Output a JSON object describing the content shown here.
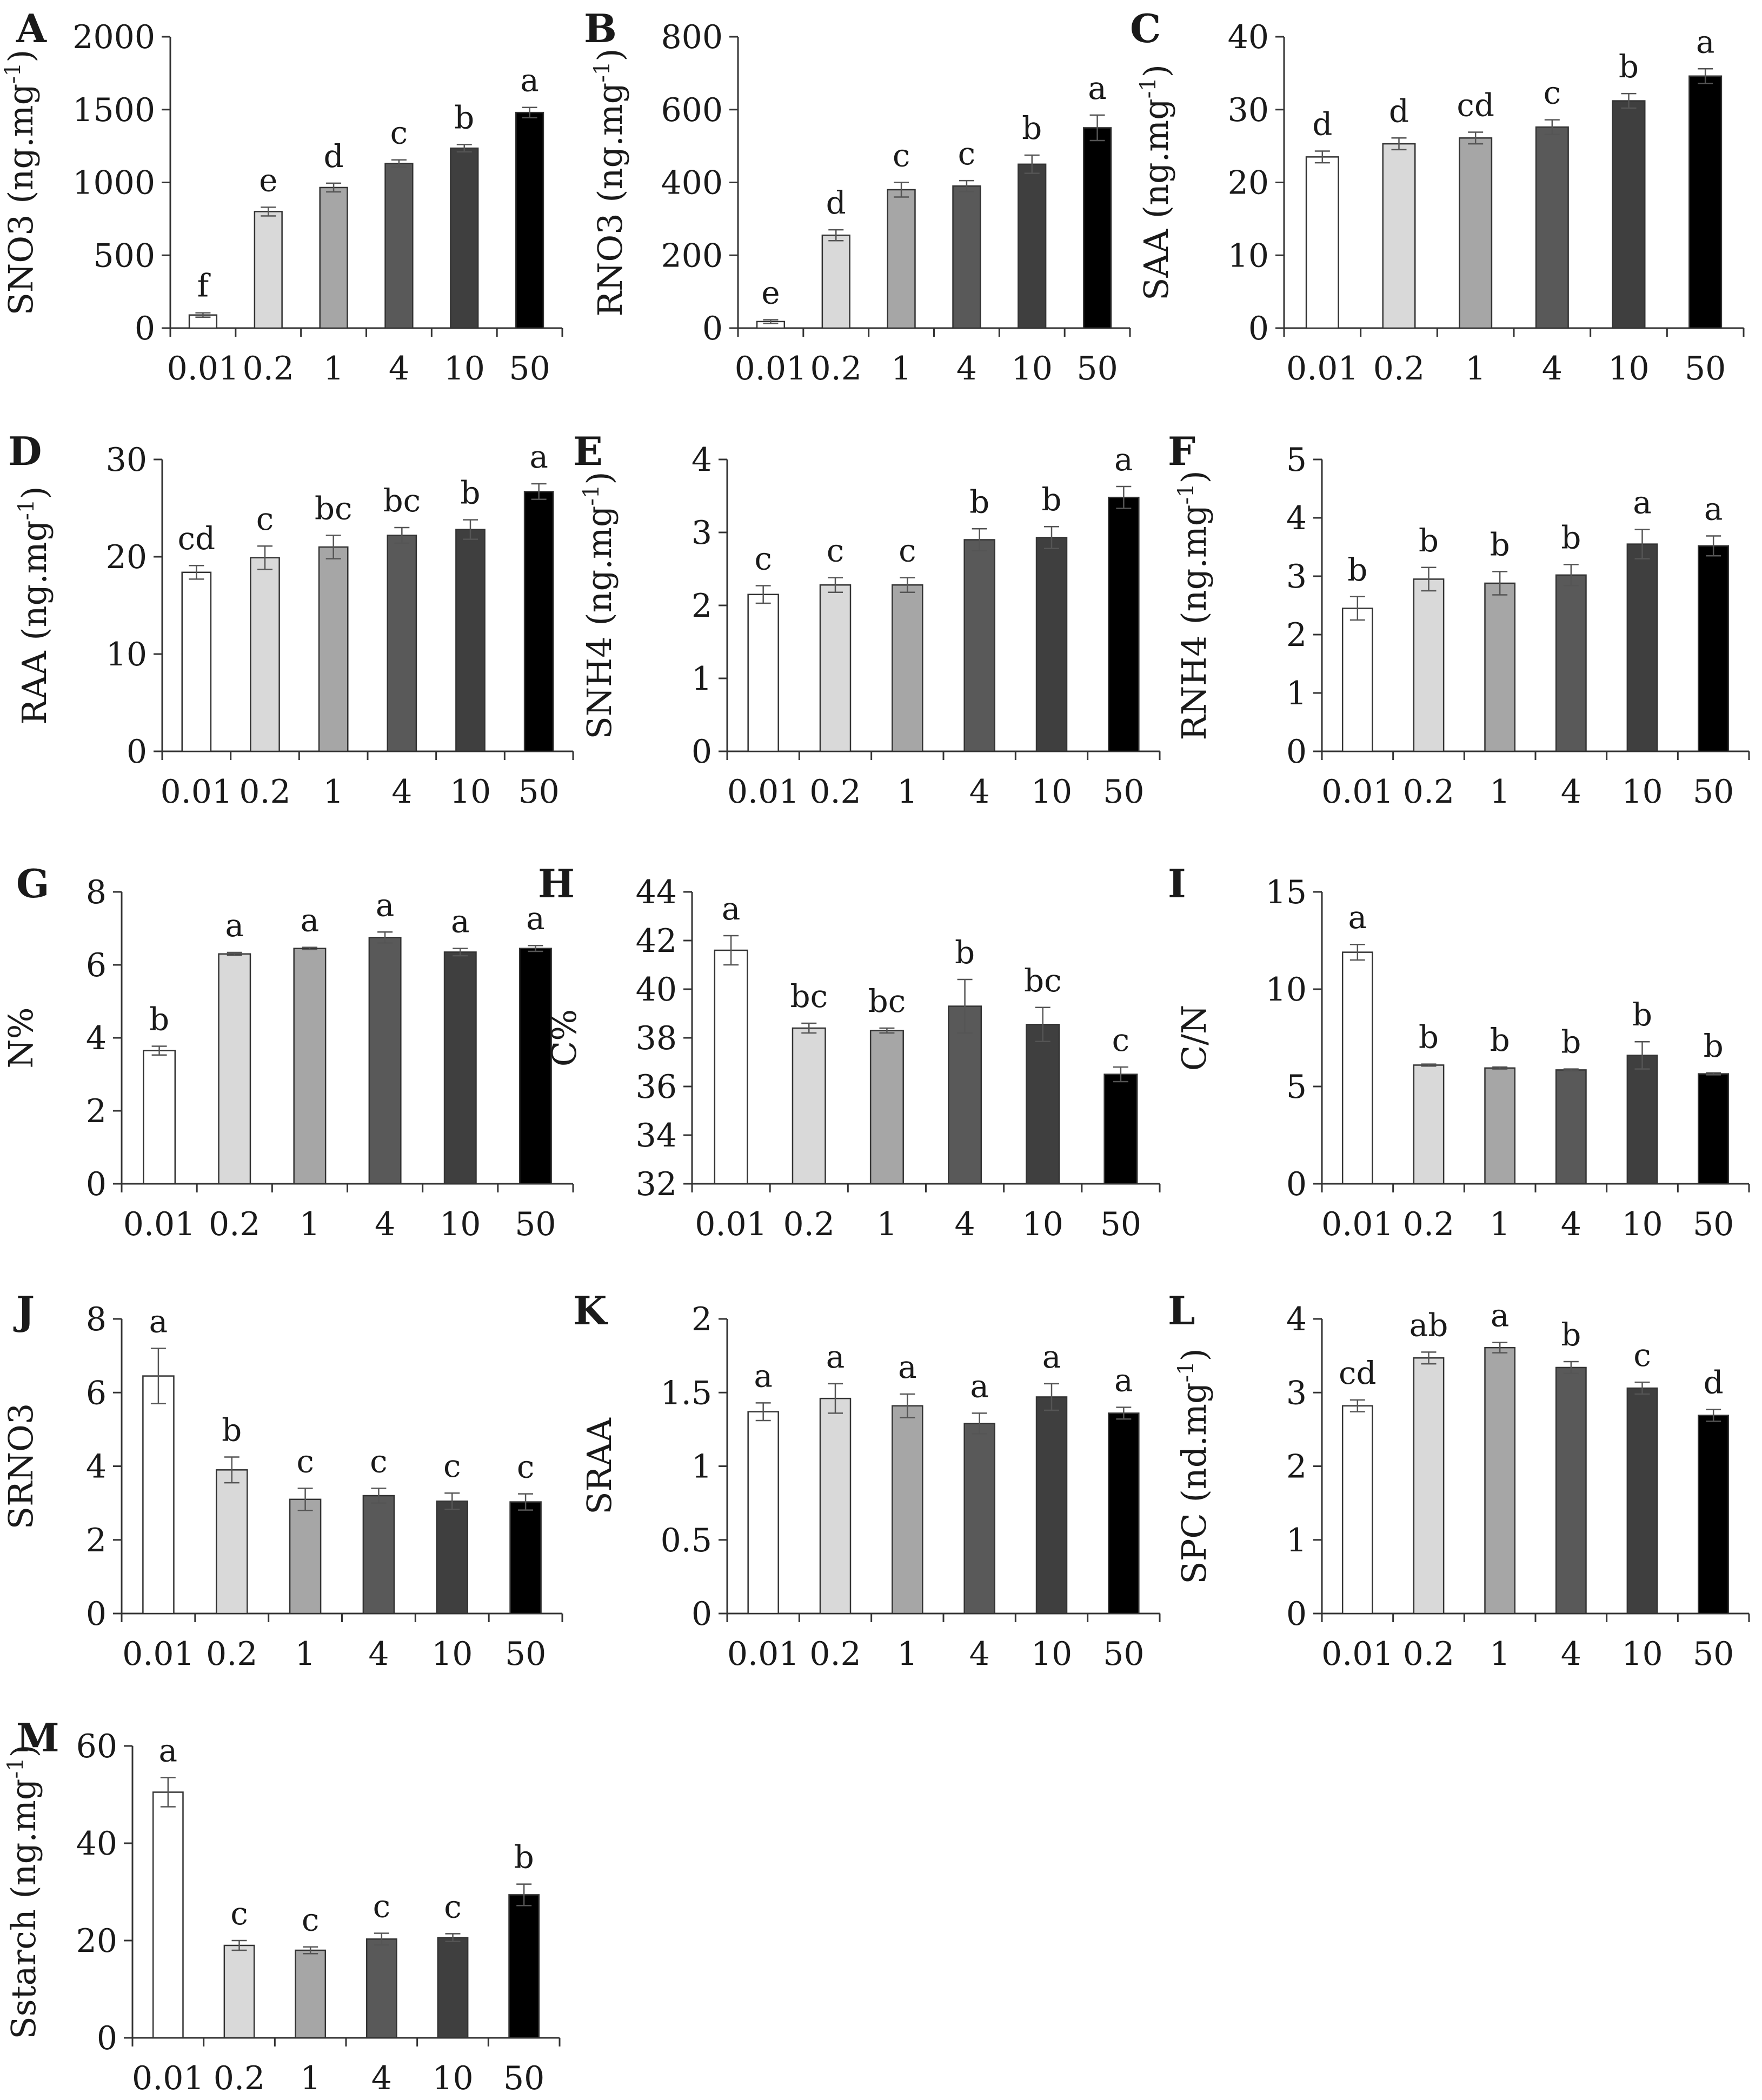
{
  "figure": {
    "categories": [
      "0.01",
      "0.2",
      "1",
      "4",
      "10",
      "50"
    ],
    "bar_colors": [
      "#ffffff",
      "#d9d9d9",
      "#a6a6a6",
      "#595959",
      "#3f3f3f",
      "#000000"
    ]
  },
  "chart_data": [
    {
      "panel": "A",
      "type": "bar",
      "ylabel": "SNO3 (ng.mg⁻¹)",
      "ylim": [
        0,
        2000
      ],
      "yticks": [
        0,
        500,
        1000,
        1500,
        2000
      ],
      "values": [
        90,
        800,
        965,
        1130,
        1235,
        1480
      ],
      "errors": [
        15,
        30,
        30,
        25,
        25,
        35
      ],
      "sig": [
        "f",
        "e",
        "d",
        "c",
        "b",
        "a"
      ]
    },
    {
      "panel": "B",
      "type": "bar",
      "ylabel": "RNO3 (ng.mg⁻¹)",
      "ylim": [
        0,
        800
      ],
      "yticks": [
        0,
        200,
        400,
        600,
        800
      ],
      "values": [
        18,
        255,
        380,
        390,
        450,
        550
      ],
      "errors": [
        5,
        15,
        20,
        15,
        25,
        35
      ],
      "sig": [
        "e",
        "d",
        "c",
        "c",
        "b",
        "a"
      ]
    },
    {
      "panel": "C",
      "type": "bar",
      "ylabel": "SAA (ng.mg⁻¹)",
      "ylim": [
        0,
        40
      ],
      "yticks": [
        0,
        10,
        20,
        30,
        40
      ],
      "values": [
        23.5,
        25.3,
        26.1,
        27.6,
        31.2,
        34.6
      ],
      "errors": [
        0.8,
        0.8,
        0.8,
        1.0,
        1.0,
        1.0
      ],
      "sig": [
        "d",
        "d",
        "cd",
        "c",
        "b",
        "a"
      ]
    },
    {
      "panel": "D",
      "type": "bar",
      "ylabel": "RAA (ng.mg⁻¹)",
      "ylim": [
        0,
        30
      ],
      "yticks": [
        0,
        10,
        20,
        30
      ],
      "values": [
        18.4,
        19.9,
        21.0,
        22.2,
        22.8,
        26.7
      ],
      "errors": [
        0.7,
        1.2,
        1.2,
        0.8,
        1.0,
        0.8
      ],
      "sig": [
        "cd",
        "c",
        "bc",
        "bc",
        "b",
        "a"
      ]
    },
    {
      "panel": "E",
      "type": "bar",
      "ylabel": "SNH4 (ng.mg⁻¹)",
      "ylim": [
        0,
        4
      ],
      "yticks": [
        0,
        1,
        2,
        3,
        4
      ],
      "values": [
        2.15,
        2.28,
        2.28,
        2.9,
        2.93,
        3.48
      ],
      "errors": [
        0.12,
        0.1,
        0.1,
        0.15,
        0.15,
        0.15
      ],
      "sig": [
        "c",
        "c",
        "c",
        "b",
        "b",
        "a"
      ]
    },
    {
      "panel": "F",
      "type": "bar",
      "ylabel": "RNH4 (ng.mg⁻¹)",
      "ylim": [
        0,
        5
      ],
      "yticks": [
        0,
        1,
        2,
        3,
        4,
        5
      ],
      "values": [
        2.45,
        2.95,
        2.88,
        3.02,
        3.55,
        3.52
      ],
      "errors": [
        0.2,
        0.2,
        0.2,
        0.18,
        0.25,
        0.17
      ],
      "sig": [
        "b",
        "b",
        "b",
        "b",
        "a",
        "a"
      ]
    },
    {
      "panel": "G",
      "type": "bar",
      "ylabel": "N%",
      "ylim": [
        0,
        8
      ],
      "yticks": [
        0,
        2,
        4,
        6,
        8
      ],
      "values": [
        3.65,
        6.3,
        6.45,
        6.75,
        6.35,
        6.45
      ],
      "errors": [
        0.12,
        0.04,
        0.03,
        0.15,
        0.1,
        0.08
      ],
      "sig": [
        "b",
        "a",
        "a",
        "a",
        "a",
        "a"
      ]
    },
    {
      "panel": "H",
      "type": "bar",
      "ylabel": "C%",
      "ylim": [
        32,
        44
      ],
      "yticks": [
        32,
        34,
        36,
        38,
        40,
        42,
        44
      ],
      "values": [
        41.6,
        38.4,
        38.3,
        39.3,
        38.55,
        36.5
      ],
      "errors": [
        0.6,
        0.2,
        0.1,
        1.1,
        0.7,
        0.3
      ],
      "sig": [
        "a",
        "bc",
        "bc",
        "b",
        "bc",
        "c"
      ]
    },
    {
      "panel": "I",
      "type": "bar",
      "ylabel": "C/N",
      "ylim": [
        0,
        15
      ],
      "yticks": [
        0,
        5,
        10,
        15
      ],
      "values": [
        11.9,
        6.1,
        5.95,
        5.85,
        6.6,
        5.65
      ],
      "errors": [
        0.4,
        0.05,
        0.05,
        0.05,
        0.7,
        0.05
      ],
      "sig": [
        "a",
        "b",
        "b",
        "b",
        "b",
        "b"
      ]
    },
    {
      "panel": "J",
      "type": "bar",
      "ylabel": "SRNO3",
      "ylim": [
        0,
        8
      ],
      "yticks": [
        0,
        2,
        4,
        6,
        8
      ],
      "values": [
        6.45,
        3.9,
        3.1,
        3.2,
        3.05,
        3.03
      ],
      "errors": [
        0.75,
        0.35,
        0.3,
        0.2,
        0.22,
        0.22
      ],
      "sig": [
        "a",
        "b",
        "c",
        "c",
        "c",
        "c"
      ]
    },
    {
      "panel": "K",
      "type": "bar",
      "ylabel": "SRAA",
      "ylim": [
        0,
        2
      ],
      "yticks": [
        0,
        0.5,
        1,
        1.5,
        2
      ],
      "ytick_labels": [
        "0",
        "0.5",
        "1",
        "1.5",
        "2"
      ],
      "values": [
        1.37,
        1.46,
        1.41,
        1.29,
        1.47,
        1.36
      ],
      "errors": [
        0.06,
        0.1,
        0.08,
        0.07,
        0.09,
        0.04
      ],
      "sig": [
        "a",
        "a",
        "a",
        "a",
        "a",
        "a"
      ]
    },
    {
      "panel": "L",
      "type": "bar",
      "ylabel": "SPC (nd.mg⁻¹)",
      "ylim": [
        0,
        4
      ],
      "yticks": [
        0,
        1,
        2,
        3,
        4
      ],
      "values": [
        2.82,
        3.47,
        3.61,
        3.34,
        3.06,
        2.69
      ],
      "errors": [
        0.08,
        0.08,
        0.07,
        0.08,
        0.08,
        0.08
      ],
      "sig": [
        "cd",
        "ab",
        "a",
        "b",
        "c",
        "d"
      ]
    },
    {
      "panel": "M",
      "type": "bar",
      "ylabel": "Sstarch (ng.mg⁻¹)",
      "ylim": [
        0,
        60
      ],
      "yticks": [
        0,
        20,
        40,
        60
      ],
      "values": [
        50.5,
        19.0,
        18.0,
        20.3,
        20.6,
        29.4
      ],
      "errors": [
        3.0,
        1.0,
        0.7,
        1.2,
        0.8,
        2.2
      ],
      "sig": [
        "a",
        "c",
        "c",
        "c",
        "c",
        "b"
      ]
    }
  ]
}
